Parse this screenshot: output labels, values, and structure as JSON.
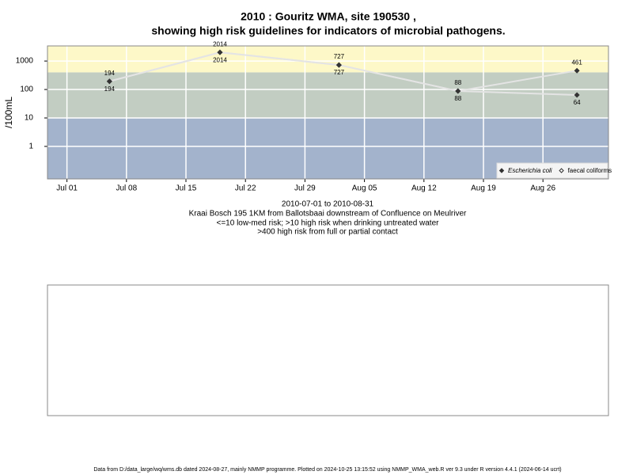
{
  "chart_data": {
    "type": "line",
    "title": [
      "2010 : Gouritz WMA, site 190530 ,",
      "showing high risk guidelines for indicators of microbial pathogens."
    ],
    "subtitle": [
      "2010-07-01 to 2010-08-31",
      "Kraai Bosch 195 1KM from Ballotsbaai downstream of Confluence on Meulriver",
      "<=10 low-med risk; >10 high risk when drinking untreated water",
      ">400 high risk from full or partial contact"
    ],
    "y_label": "/100mL",
    "footer": "Data from D:/data_large/wq/wms.db dated 2024-08-27, mainly NMMP programme. Plotted on 2024-10-25 13:15:52 using NMMP_WMA_web.R ver 9.3 under R version 4.4.1 (2024-06-14 ucrt)",
    "x": [
      "2010-07-06",
      "2010-07-19",
      "2010-08-02",
      "2010-08-16",
      "2010-08-30"
    ],
    "series": [
      {
        "name": "Escherichia coli",
        "color": "#333333",
        "values": [
          194,
          2014,
          727,
          88,
          64
        ]
      },
      {
        "name": "faecal coliforms",
        "color": "#333333",
        "values": [
          194,
          2014,
          727,
          88,
          461
        ]
      }
    ],
    "line_color": "#e4e4e4",
    "xlim": [
      "2010-06-28T17:00",
      "2010-09-02T17:00"
    ],
    "xticks": [
      {
        "value": "2010-07-01",
        "label": "Jul 01"
      },
      {
        "value": "2010-07-08",
        "label": "Jul 08"
      },
      {
        "value": "2010-07-15",
        "label": "Jul 15"
      },
      {
        "value": "2010-07-22",
        "label": "Jul 22"
      },
      {
        "value": "2010-07-29",
        "label": "Jul 29"
      },
      {
        "value": "2010-08-05",
        "label": "Aug 05"
      },
      {
        "value": "2010-08-12",
        "label": "Aug 12"
      },
      {
        "value": "2010-08-19",
        "label": "Aug 19"
      },
      {
        "value": "2010-08-26",
        "label": "Aug 26"
      }
    ],
    "ylim": [
      0.072,
      3400
    ],
    "yticks": [
      1,
      10,
      100,
      1000
    ],
    "log_y": true,
    "grid": true,
    "risk_thresholds": [
      10,
      400
    ],
    "band_colors": [
      "#a3b3cc",
      "#c2cdc2",
      "#fdf8c8"
    ],
    "legend": "bottom-right"
  }
}
